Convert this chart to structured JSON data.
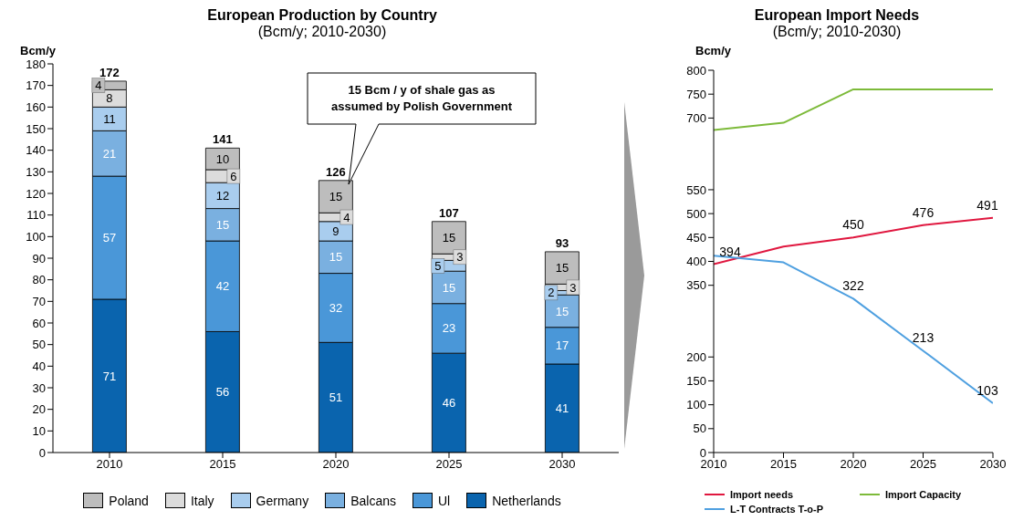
{
  "chart_data": [
    {
      "type": "bar",
      "title": "European Production by Country",
      "subtitle": "(Bcm/y; 2010-2030)",
      "ylabel": "Bcm/y",
      "categories": [
        "2010",
        "2015",
        "2020",
        "2025",
        "2030"
      ],
      "stacked": true,
      "series": [
        {
          "name": "Netherlands",
          "color": "#0a64ae",
          "values": [
            71,
            56,
            51,
            46,
            41
          ]
        },
        {
          "name": "Ul",
          "color": "#4a97d8",
          "values": [
            57,
            42,
            32,
            23,
            17
          ]
        },
        {
          "name": "Balcans",
          "color": "#7ab0e0",
          "values": [
            21,
            15,
            15,
            15,
            15
          ]
        },
        {
          "name": "Germany",
          "color": "#a9cdee",
          "values": [
            11,
            12,
            9,
            5,
            2
          ]
        },
        {
          "name": "Italy",
          "color": "#dcdcdc",
          "values": [
            8,
            6,
            4,
            3,
            3
          ]
        },
        {
          "name": "Poland",
          "color": "#bdbdbd",
          "values": [
            4,
            10,
            15,
            15,
            15
          ]
        }
      ],
      "ylim": [
        0,
        180
      ],
      "yticks": [
        0,
        10,
        20,
        30,
        40,
        50,
        60,
        70,
        80,
        90,
        100,
        110,
        120,
        130,
        140,
        150,
        160,
        170,
        180
      ],
      "grid": false,
      "legend": "bottom",
      "data_labels": true,
      "totals": [
        "172",
        "141",
        "126",
        "107",
        "93"
      ],
      "annotations": [
        "15 Bcm / y of shale gas as assumed by Polish Government"
      ]
    },
    {
      "type": "line",
      "title": "European Import Needs",
      "subtitle": "(Bcm/y; 2010-2030)",
      "ylabel": "Bcm/y",
      "x": [
        2010,
        2015,
        2020,
        2025,
        2030
      ],
      "series": [
        {
          "name": "Import needs",
          "color": "#e0173f",
          "values": [
            394,
            431,
            450,
            476,
            491
          ],
          "value_labels": [
            "394",
            null,
            "450",
            "476",
            "491"
          ]
        },
        {
          "name": "Import Capacity",
          "color": "#7dba3a",
          "values": [
            675,
            690,
            760,
            760,
            760
          ]
        },
        {
          "name": "L-T Contracts T-o-P",
          "color": "#4fa0e0",
          "values": [
            412,
            398,
            322,
            213,
            103
          ],
          "value_labels": [
            null,
            null,
            "322",
            "213",
            "103"
          ]
        }
      ],
      "xlim": [
        2010,
        2030
      ],
      "xticks": [
        2010,
        2015,
        2020,
        2025,
        2030
      ],
      "ylim": [
        0,
        800
      ],
      "yticks": [
        0,
        50,
        100,
        150,
        200,
        350,
        400,
        450,
        500,
        550,
        700,
        750,
        800
      ],
      "grid": false,
      "legend": "bottom"
    }
  ]
}
